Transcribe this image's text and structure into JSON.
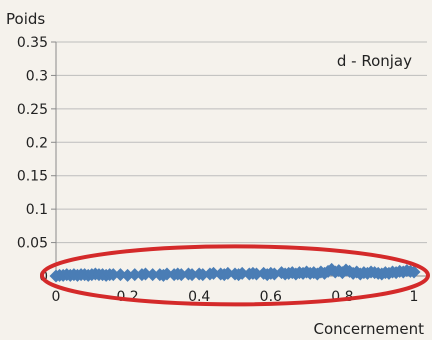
{
  "chart_data": {
    "type": "scatter",
    "title": "",
    "ylabel": "Poids",
    "xlabel": "Concernement",
    "annotation": "d - Ronjay",
    "xlim": [
      0,
      1
    ],
    "ylim": [
      0,
      0.35
    ],
    "x_ticks": [
      0,
      0.2,
      0.4,
      0.6,
      0.8,
      1
    ],
    "x_tick_labels": [
      "0",
      "0.2",
      "0.4",
      "0.6",
      "0.8",
      "1"
    ],
    "y_ticks": [
      0,
      0.05,
      0.1,
      0.15,
      0.2,
      0.25,
      0.3,
      0.35
    ],
    "y_tick_labels": [
      "0",
      "0.05",
      "0.1",
      "0.15",
      "0.2",
      "0.25",
      "0.3",
      "0.35"
    ],
    "grid": "horizontal",
    "marker": "diamond",
    "series_color": "#4a7db5",
    "highlight_color": "#d42a2a",
    "highlight_shape": "ellipse",
    "highlight_region": {
      "x": [
        0,
        1
      ],
      "y": [
        -0.004,
        0.012
      ]
    },
    "series": [
      {
        "values": [
          [
            0.0,
            0.0
          ],
          [
            0.01,
            0.001
          ],
          [
            0.02,
            0.001
          ],
          [
            0.03,
            0.002
          ],
          [
            0.04,
            0.001
          ],
          [
            0.05,
            0.002
          ],
          [
            0.06,
            0.001
          ],
          [
            0.07,
            0.002
          ],
          [
            0.08,
            0.002
          ],
          [
            0.09,
            0.001
          ],
          [
            0.1,
            0.002
          ],
          [
            0.11,
            0.003
          ],
          [
            0.12,
            0.002
          ],
          [
            0.13,
            0.002
          ],
          [
            0.14,
            0.001
          ],
          [
            0.15,
            0.002
          ],
          [
            0.16,
            0.002
          ],
          [
            0.18,
            0.002
          ],
          [
            0.2,
            0.001
          ],
          [
            0.22,
            0.002
          ],
          [
            0.24,
            0.002
          ],
          [
            0.25,
            0.003
          ],
          [
            0.27,
            0.002
          ],
          [
            0.29,
            0.002
          ],
          [
            0.3,
            0.001
          ],
          [
            0.31,
            0.003
          ],
          [
            0.33,
            0.002
          ],
          [
            0.34,
            0.003
          ],
          [
            0.35,
            0.002
          ],
          [
            0.37,
            0.003
          ],
          [
            0.38,
            0.002
          ],
          [
            0.4,
            0.003
          ],
          [
            0.41,
            0.002
          ],
          [
            0.43,
            0.003
          ],
          [
            0.44,
            0.004
          ],
          [
            0.46,
            0.003
          ],
          [
            0.47,
            0.002
          ],
          [
            0.48,
            0.004
          ],
          [
            0.5,
            0.003
          ],
          [
            0.51,
            0.002
          ],
          [
            0.52,
            0.004
          ],
          [
            0.54,
            0.003
          ],
          [
            0.55,
            0.004
          ],
          [
            0.56,
            0.003
          ],
          [
            0.58,
            0.004
          ],
          [
            0.59,
            0.002
          ],
          [
            0.6,
            0.004
          ],
          [
            0.61,
            0.003
          ],
          [
            0.63,
            0.005
          ],
          [
            0.64,
            0.003
          ],
          [
            0.65,
            0.004
          ],
          [
            0.66,
            0.005
          ],
          [
            0.67,
            0.003
          ],
          [
            0.68,
            0.005
          ],
          [
            0.69,
            0.004
          ],
          [
            0.7,
            0.006
          ],
          [
            0.71,
            0.004
          ],
          [
            0.72,
            0.005
          ],
          [
            0.73,
            0.003
          ],
          [
            0.74,
            0.006
          ],
          [
            0.75,
            0.004
          ],
          [
            0.76,
            0.007
          ],
          [
            0.77,
            0.01
          ],
          [
            0.78,
            0.006
          ],
          [
            0.79,
            0.008
          ],
          [
            0.8,
            0.005
          ],
          [
            0.81,
            0.009
          ],
          [
            0.82,
            0.007
          ],
          [
            0.83,
            0.004
          ],
          [
            0.84,
            0.006
          ],
          [
            0.85,
            0.003
          ],
          [
            0.86,
            0.005
          ],
          [
            0.87,
            0.004
          ],
          [
            0.88,
            0.006
          ],
          [
            0.89,
            0.005
          ],
          [
            0.9,
            0.004
          ],
          [
            0.91,
            0.003
          ],
          [
            0.92,
            0.005
          ],
          [
            0.93,
            0.004
          ],
          [
            0.94,
            0.006
          ],
          [
            0.95,
            0.005
          ],
          [
            0.96,
            0.007
          ],
          [
            0.97,
            0.006
          ],
          [
            0.98,
            0.008
          ],
          [
            0.99,
            0.007
          ],
          [
            1.0,
            0.006
          ]
        ]
      }
    ]
  }
}
